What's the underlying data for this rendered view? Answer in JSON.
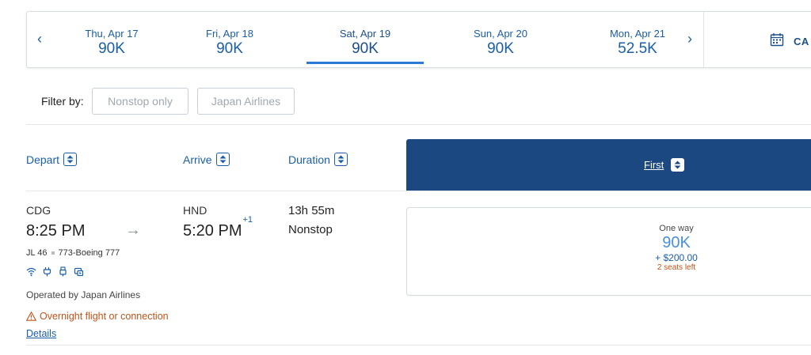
{
  "date_strip": {
    "prev_icon": "chevron-left-icon",
    "next_icon": "chevron-right-icon",
    "dates": [
      {
        "label": "Thu, Apr 17",
        "price": "90K"
      },
      {
        "label": "Fri, Apr 18",
        "price": "90K"
      },
      {
        "label": "Sat, Apr 19",
        "price": "90K",
        "selected": true
      },
      {
        "label": "Sun, Apr 20",
        "price": "90K"
      },
      {
        "label": "Mon, Apr 21",
        "price": "52.5K"
      }
    ],
    "calendar_label": "CA",
    "calendar_icon": "calendar-icon"
  },
  "filters": {
    "label": "Filter by:",
    "options": [
      "Nonstop only",
      "Japan Airlines"
    ]
  },
  "columns": {
    "depart": "Depart",
    "arrive": "Arrive",
    "duration": "Duration",
    "cabin": "First"
  },
  "flight": {
    "origin": "CDG",
    "destination": "HND",
    "depart_time": "8:25 PM",
    "arrive_time": "5:20 PM",
    "arrive_day_offset": "+1",
    "duration": "13h 55m",
    "stops": "Nonstop",
    "flight_number": "JL 46",
    "aircraft": "773-Boeing 777",
    "amenities": [
      "wifi-icon",
      "power-outlet-icon",
      "usb-icon",
      "entertainment-icon"
    ],
    "operated_by": "Operated by Japan Airlines",
    "warning": "Overnight flight or connection",
    "details_link": "Details"
  },
  "fare": {
    "type": "One way",
    "miles": "90K",
    "taxes": "+ $200.00",
    "seats_left": "2 seats left"
  },
  "colors": {
    "accent": "#1a5ea8",
    "cabin_header": "#1b4880",
    "warning": "#c1531a",
    "fare_miles": "#4a90d9"
  }
}
